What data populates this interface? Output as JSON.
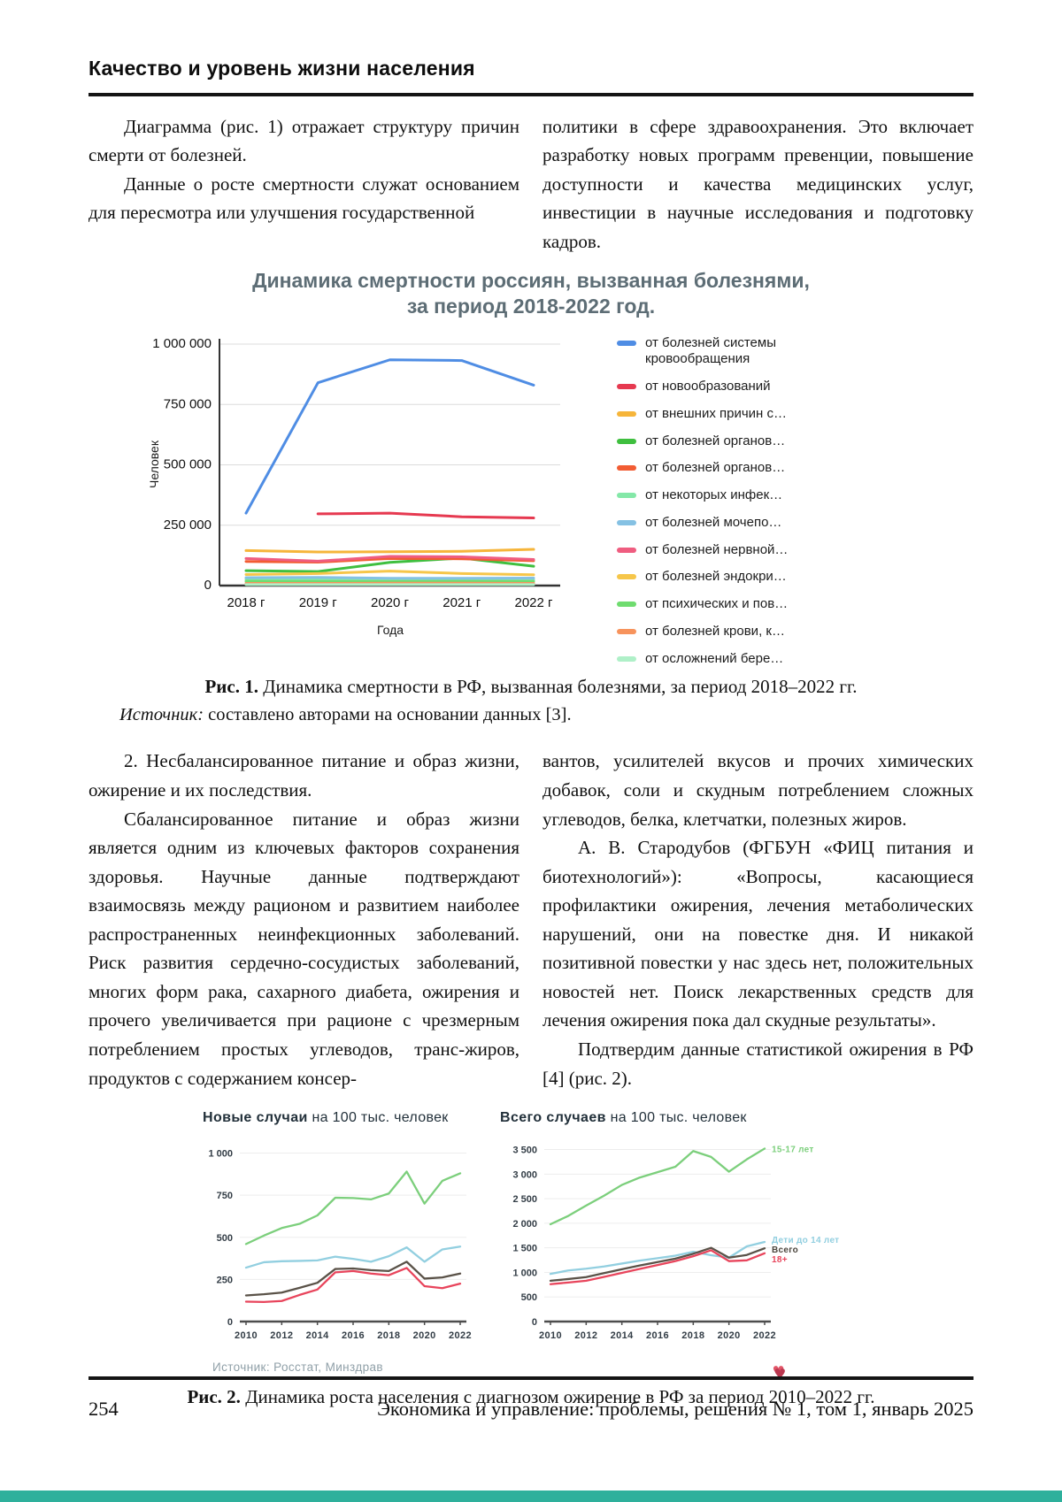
{
  "page": {
    "header_title": "Качество и уровень жизни населения",
    "footer": {
      "page_number": "254",
      "journal_line": "Экономика и управление: проблемы, решения № 1, том 1, январь 2025"
    },
    "accent_bar_color": "#2eb09c"
  },
  "body_text": {
    "block1_col1_p1": "Диаграмма (рис. 1) отражает структуру причин смерти от болезней.",
    "block1_col1_p2": "Данные о росте смертности служат основанием для пересмотра или улучшения государственной",
    "block1_col2_p1": "политики в сфере здравоохранения. Это включает разработку новых программ превенции, повышение доступности и качества медицинских услуг, инвестиции в научные исследования и подготовку кадров.",
    "block2_col1_p1": "2. Несбалансированное питание и образ жизни, ожирение и их последствия.",
    "block2_col1_p2": "Сбалансированное питание и образ жизни является одним из ключевых факторов сохранения здоровья. Научные данные подтверждают взаимосвязь между рационом и развитием наиболее распространенных неинфекционных заболеваний. Риск развития сердечно-сосудистых заболеваний, многих форм рака, сахарного диабета, ожирения и прочего увеличивается при рационе с чрезмерным потреблением простых углеводов, транс-жиров, продуктов с содержанием консер-",
    "block2_col2_p1": "вантов, усилителей вкусов и прочих химических добавок, соли и скудным потреблением сложных углеводов, белка, клетчатки, полезных жиров.",
    "block2_col2_p2": "А. В. Стародубов (ФГБУН «ФИЦ питания и биотехнологий»): «Вопросы, касающиеся профилактики ожирения, лечения метаболических нарушений, они на повестке дня. И никакой позитивной повестки у нас здесь нет, положительных новостей нет. Поиск лекарственных средств для лечения ожирения пока дал скудные результаты».",
    "block2_col2_p3": "Подтвердим данные статистикой ожирения в РФ [4] (рис. 2)."
  },
  "figure1": {
    "title_color": "#5d6d75",
    "caption_label": "Рис. 1.",
    "caption_text": "Динамика смертности в РФ, вызванная болезнями, за период 2018–2022 гг.",
    "source_label": "Источник:",
    "source_text": "составлено авторами на основании данных [3]."
  },
  "figure2": {
    "source_note": "Источник: Росстат, Минздрав",
    "caption_label": "Рис. 2.",
    "caption_text": "Динамика роста населения с диагнозом ожирение в РФ за период 2010–2022 гг."
  },
  "chart_data": [
    {
      "type": "line",
      "title": "Динамика смертности россиян, вызванная болезнями, за период 2018-2022 год.",
      "title_line1": "Динамика смертности россиян, вызванная болезнями,",
      "title_line2": "за период 2018-2022 год.",
      "categories": [
        "2018 г",
        "2019 г",
        "2020 г",
        "2021 г",
        "2022 г"
      ],
      "xlabel": "Года",
      "ylabel": "Человек",
      "ylim": [
        0,
        1000000
      ],
      "yticks": [
        0,
        250000,
        500000,
        750000,
        1000000
      ],
      "ytick_labels": [
        "0",
        "250 000",
        "500 000",
        "750 000",
        "1 000 000"
      ],
      "grid": true,
      "legend_position": "right",
      "series": [
        {
          "name": "от болезней системы кровообращения",
          "color": "#4f8de4",
          "values": [
            300000,
            840000,
            935000,
            932000,
            830000
          ]
        },
        {
          "name": "от новообразований",
          "color": "#e63950",
          "values": [
            null,
            297000,
            300000,
            285000,
            280000
          ]
        },
        {
          "name": "от внешних причин с…",
          "color": "#f6b53a",
          "values": [
            145000,
            139000,
            140000,
            142000,
            150000
          ]
        },
        {
          "name": "от болезней органов…",
          "color": "#3fbf3f",
          "values": [
            62000,
            58000,
            96000,
            114000,
            80000
          ]
        },
        {
          "name": "от болезней органов…",
          "color": "#f25c33",
          "values": [
            100000,
            97000,
            112000,
            111000,
            103000
          ]
        },
        {
          "name": "от некоторых инфек…",
          "color": "#84e8a8",
          "values": [
            26000,
            25000,
            24000,
            24000,
            23000
          ]
        },
        {
          "name": "от болезней мочепо…",
          "color": "#85c1e3",
          "values": [
            33000,
            34000,
            30000,
            30000,
            31000
          ]
        },
        {
          "name": "от болезней нервной…",
          "color": "#ef5d80",
          "values": [
            112000,
            101000,
            121000,
            119000,
            108000
          ]
        },
        {
          "name": "от болезней эндокри…",
          "color": "#f6c64a",
          "values": [
            46000,
            50000,
            60000,
            50000,
            45000
          ]
        },
        {
          "name": "от психических и пов…",
          "color": "#6fdc6f",
          "values": [
            18000,
            17000,
            17000,
            18000,
            17000
          ]
        },
        {
          "name": "от болезней крови, к…",
          "color": "#f7935c",
          "values": [
            9000,
            9000,
            10000,
            10000,
            9000
          ]
        },
        {
          "name": "от осложнений бере…",
          "color": "#aff0c8",
          "values": [
            4000,
            4000,
            4000,
            4000,
            4000
          ]
        }
      ]
    },
    {
      "type": "line",
      "title_bold": "Новые случаи",
      "title_rest": " на 100 тыс. человек",
      "x": [
        2010,
        2011,
        2012,
        2013,
        2014,
        2015,
        2016,
        2017,
        2018,
        2019,
        2020,
        2021,
        2022
      ],
      "x_tick_labels": [
        "2010",
        "2012",
        "2014",
        "2016",
        "2018",
        "2020",
        "2022"
      ],
      "ylim": [
        0,
        1050
      ],
      "yticks": [
        0,
        250,
        500,
        750,
        1000
      ],
      "ytick_labels": [
        "0",
        "250",
        "500",
        "750",
        "1 000"
      ],
      "grid": true,
      "series": [
        {
          "name": "15-17 лет",
          "color": "#7ccf7c",
          "values": [
            460,
            510,
            555,
            580,
            630,
            735,
            733,
            725,
            760,
            890,
            700,
            835,
            880
          ]
        },
        {
          "name": "Дети до 14 лет",
          "color": "#92cfe0",
          "values": [
            320,
            352,
            358,
            360,
            363,
            385,
            372,
            355,
            388,
            440,
            355,
            428,
            445
          ]
        },
        {
          "name": "Всего",
          "color": "#5a5248",
          "values": [
            155,
            162,
            172,
            200,
            230,
            312,
            315,
            305,
            300,
            355,
            255,
            262,
            285
          ]
        },
        {
          "name": "18+",
          "color": "#e8455c",
          "values": [
            118,
            116,
            122,
            158,
            190,
            292,
            300,
            285,
            275,
            318,
            210,
            198,
            225
          ]
        }
      ]
    },
    {
      "type": "line",
      "title_bold": "Всего случаев",
      "title_rest": " на 100 тыс. человек",
      "x": [
        2010,
        2011,
        2012,
        2013,
        2014,
        2015,
        2016,
        2017,
        2018,
        2019,
        2020,
        2021,
        2022
      ],
      "x_tick_labels": [
        "2010",
        "2012",
        "2014",
        "2016",
        "2018",
        "2020",
        "2022"
      ],
      "ylim": [
        0,
        3600
      ],
      "yticks": [
        0,
        500,
        1000,
        1500,
        2000,
        2500,
        3000,
        3500
      ],
      "ytick_labels": [
        "0",
        "500",
        "1 000",
        "1 500",
        "2 000",
        "2 500",
        "3 000",
        "3 500"
      ],
      "grid": true,
      "series": [
        {
          "name": "15-17 лет",
          "color": "#7ccf7c",
          "values": [
            1980,
            2150,
            2360,
            2560,
            2780,
            2930,
            3040,
            3150,
            3470,
            3350,
            3050,
            3300,
            3520
          ]
        },
        {
          "name": "Дети до 14 лет",
          "color": "#92cfe0",
          "values": [
            970,
            1040,
            1075,
            1120,
            1180,
            1240,
            1290,
            1340,
            1420,
            1350,
            1300,
            1530,
            1620
          ]
        },
        {
          "name": "Всего",
          "color": "#5a5248",
          "label_color": "#4a443c",
          "values": [
            830,
            865,
            905,
            985,
            1065,
            1140,
            1210,
            1280,
            1380,
            1500,
            1300,
            1355,
            1490
          ]
        },
        {
          "name": "18+",
          "color": "#e8455c",
          "values": [
            760,
            795,
            830,
            910,
            990,
            1070,
            1150,
            1230,
            1330,
            1450,
            1230,
            1245,
            1390
          ]
        }
      ]
    }
  ]
}
